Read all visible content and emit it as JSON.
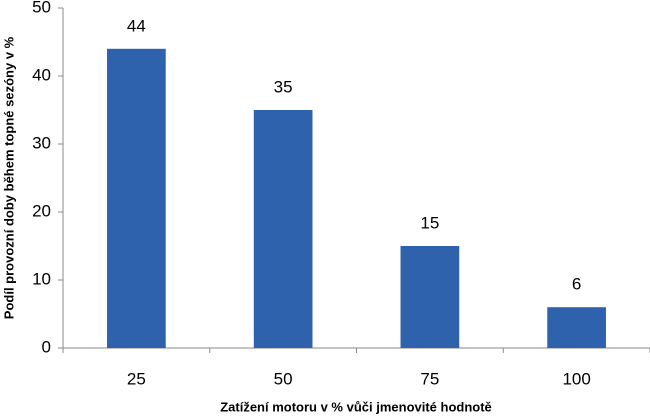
{
  "chart_data": {
    "type": "bar",
    "x_label": "Zatížení motoru v % vůči jmenovité hodnotě",
    "y_label": "Podíl provozní doby během topné sezóny v %",
    "categories": [
      "25",
      "50",
      "75",
      "100"
    ],
    "values": [
      44,
      35,
      15,
      6
    ],
    "color": "#2e62ad",
    "ylim": [
      0,
      50
    ],
    "yticks": [
      0,
      10,
      20,
      30,
      40,
      50
    ],
    "grid": false
  }
}
